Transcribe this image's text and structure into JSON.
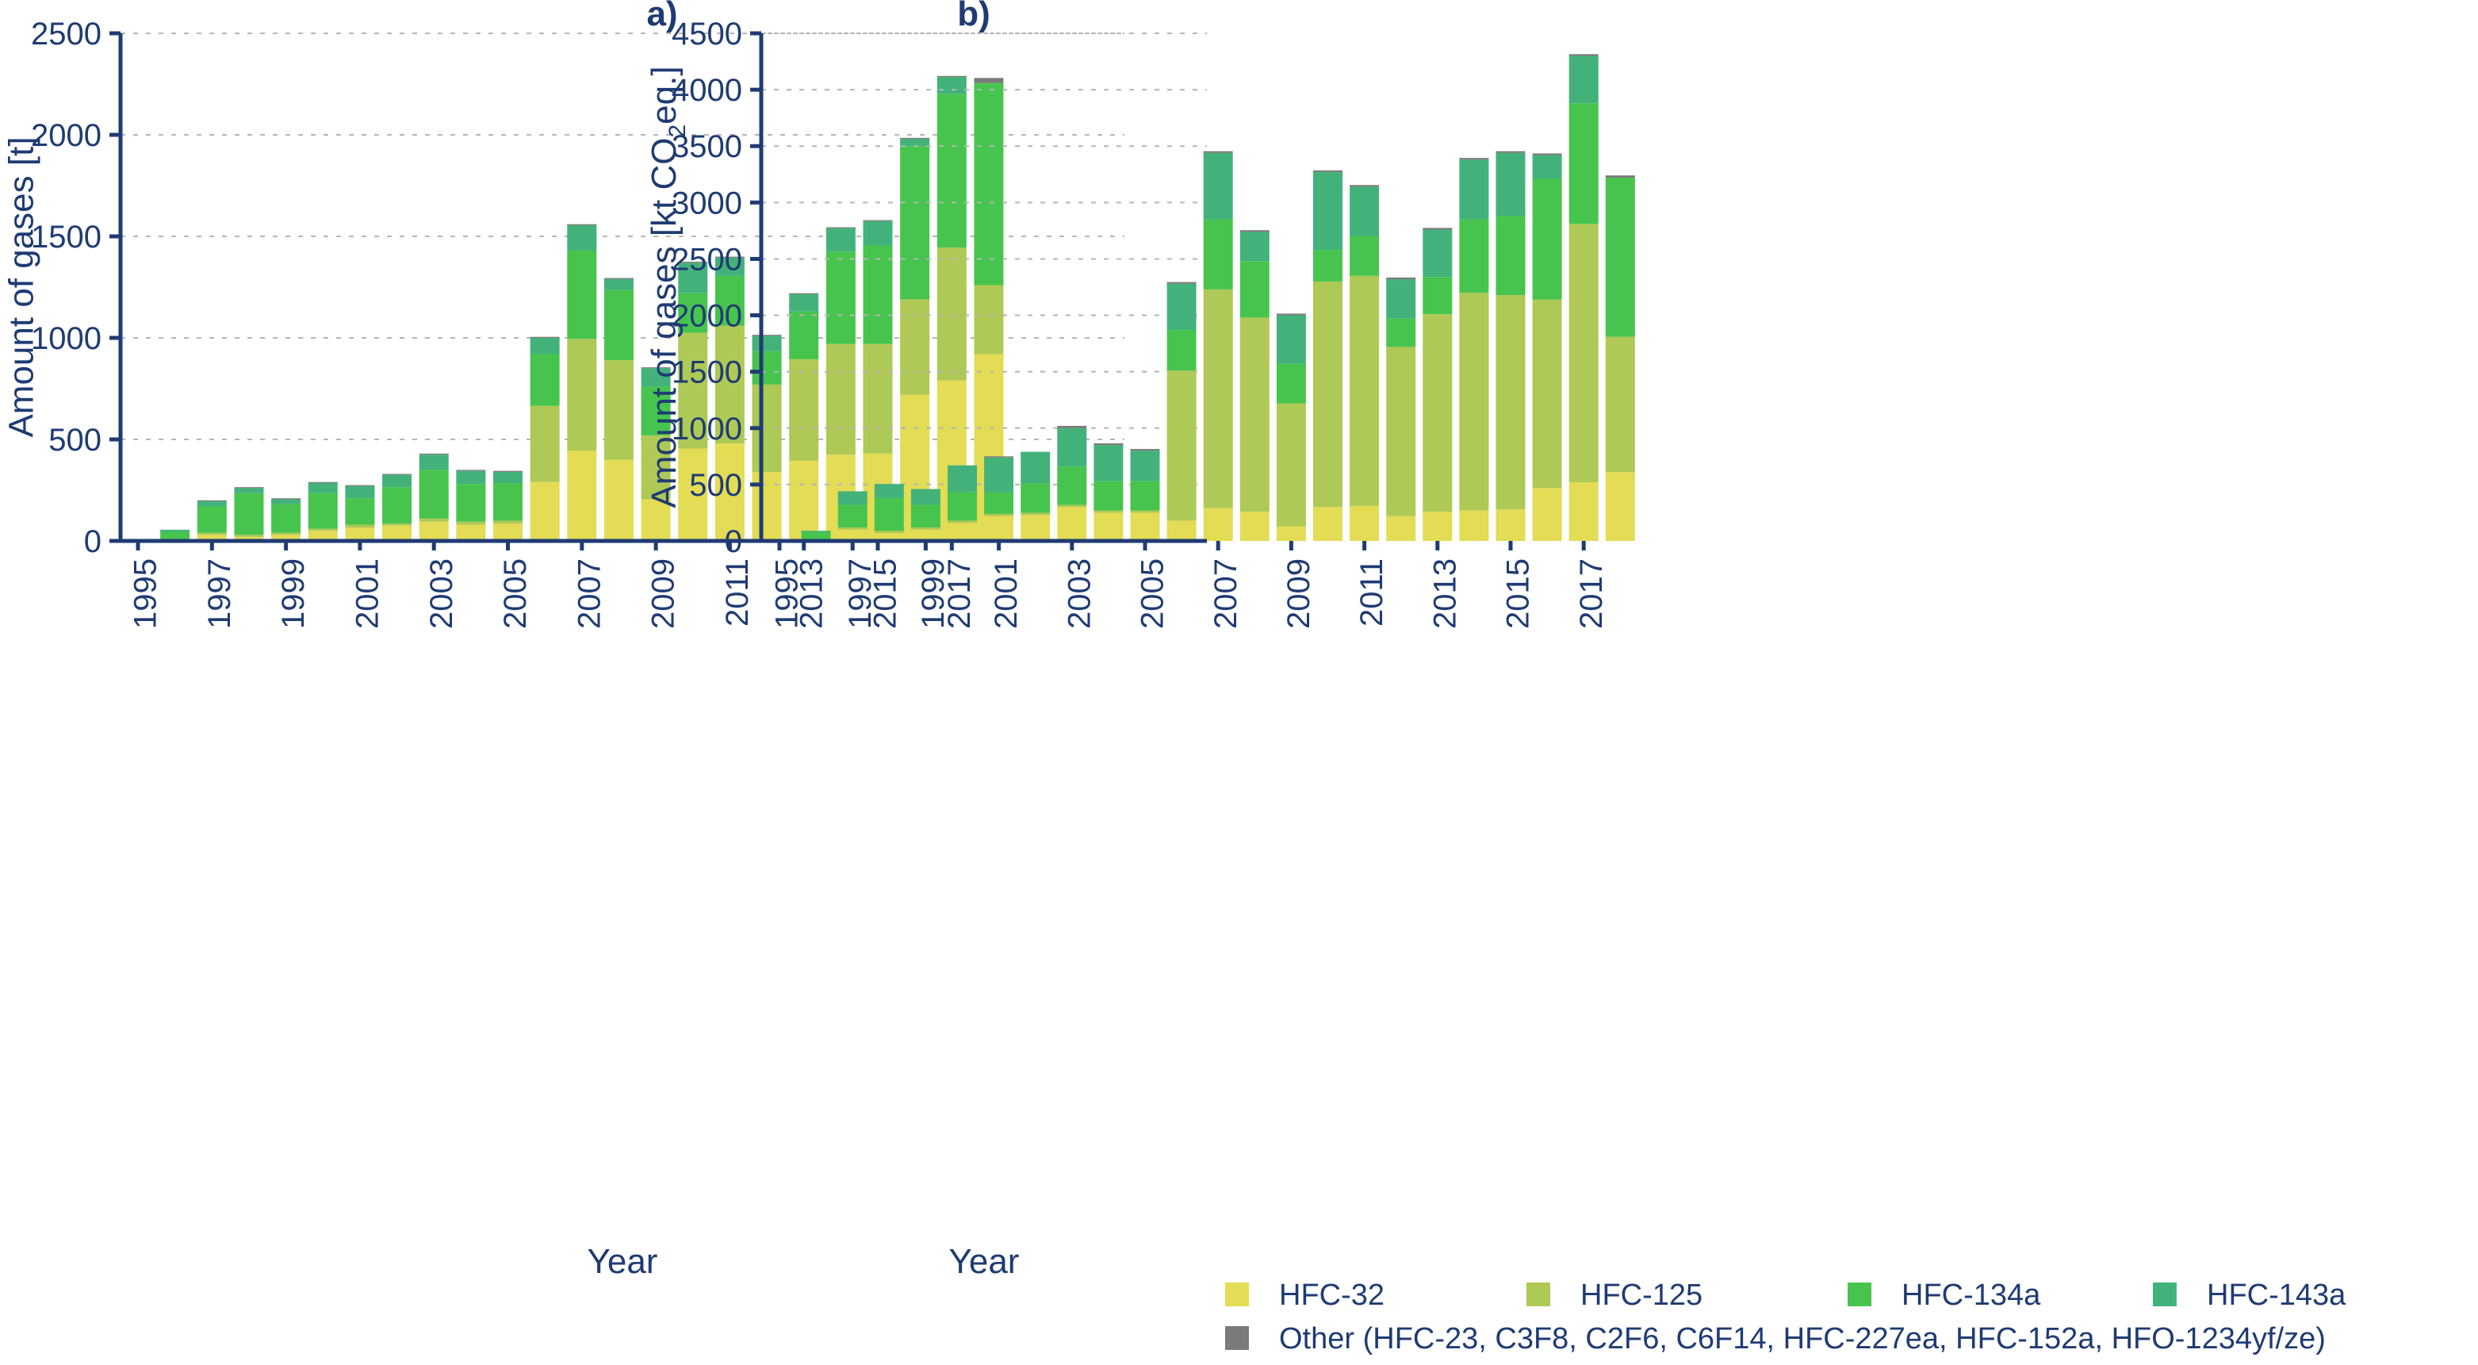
{
  "chart_data": [
    {
      "type": "bar",
      "stacked": true,
      "panel": "a",
      "title": "a)",
      "xlabel": "Year",
      "ylabel": "Amount of gases [t]",
      "ylim": [
        0,
        2500
      ],
      "yticks": [
        0,
        500,
        1000,
        1500,
        2000,
        2500
      ],
      "grid": true,
      "categories": [
        "1995",
        "1996",
        "1997",
        "1998",
        "1999",
        "2000",
        "2001",
        "2002",
        "2003",
        "2004",
        "2005",
        "2006",
        "2007",
        "2008",
        "2009",
        "2010",
        "2011",
        "2012",
        "2013",
        "2014",
        "2015",
        "2016",
        "2017",
        "2018"
      ],
      "xtick_labels": [
        "1995",
        "1997",
        "1999",
        "2001",
        "2003",
        "2005",
        "2007",
        "2009",
        "2011",
        "2013",
        "2015",
        "2017"
      ],
      "series": [
        {
          "name": "HFC-32",
          "values": [
            0,
            0,
            30,
            20,
            30,
            50,
            65,
            75,
            95,
            80,
            85,
            290,
            445,
            400,
            205,
            455,
            480,
            340,
            395,
            425,
            430,
            720,
            790,
            920
          ]
        },
        {
          "name": "HFC-125",
          "values": [
            0,
            5,
            10,
            10,
            10,
            10,
            15,
            10,
            15,
            15,
            15,
            375,
            550,
            490,
            315,
            570,
            580,
            430,
            500,
            545,
            540,
            470,
            655,
            340
          ]
        },
        {
          "name": "HFC-134a",
          "values": [
            0,
            40,
            130,
            205,
            140,
            175,
            130,
            180,
            240,
            185,
            185,
            255,
            435,
            345,
            240,
            195,
            245,
            165,
            235,
            455,
            485,
            755,
            755,
            995
          ]
        },
        {
          "name": "HFC-143a",
          "values": [
            0,
            10,
            25,
            25,
            25,
            50,
            60,
            60,
            75,
            65,
            55,
            80,
            125,
            55,
            90,
            150,
            90,
            75,
            85,
            115,
            120,
            35,
            85,
            0
          ]
        },
        {
          "name": "Other (HFC-23, C3F8, C2F6, C6F14, HFC-227ea, HFC-152a, HFO-1234yf/ze)",
          "values": [
            0,
            0,
            5,
            5,
            5,
            5,
            5,
            5,
            5,
            5,
            5,
            5,
            5,
            5,
            5,
            5,
            5,
            5,
            5,
            5,
            5,
            5,
            5,
            25
          ]
        }
      ]
    },
    {
      "type": "bar",
      "stacked": true,
      "panel": "b",
      "title": "b)",
      "xlabel": "Year",
      "ylabel": "Amount of gases [kt CO2eq.]",
      "ylabel_parts": {
        "before": "Amount of gases [kt CO",
        "sub": "2",
        "after": "eq.]"
      },
      "ylim": [
        0,
        4500
      ],
      "yticks": [
        0,
        500,
        1000,
        1500,
        2000,
        2500,
        3000,
        3500,
        4000,
        4500
      ],
      "grid": true,
      "categories": [
        "1995",
        "1996",
        "1997",
        "1998",
        "1999",
        "2000",
        "2001",
        "2002",
        "2003",
        "2004",
        "2005",
        "2006",
        "2007",
        "2008",
        "2009",
        "2010",
        "2011",
        "2012",
        "2013",
        "2014",
        "2015",
        "2016",
        "2017",
        "2018"
      ],
      "xtick_labels": [
        "1995",
        "1997",
        "1999",
        "2001",
        "2003",
        "2005",
        "2007",
        "2009",
        "2011",
        "2013",
        "2015",
        "2017"
      ],
      "series": [
        {
          "name": "HFC-32",
          "values": [
            0,
            0,
            100,
            70,
            100,
            160,
            220,
            230,
            300,
            250,
            250,
            180,
            290,
            260,
            130,
            300,
            310,
            220,
            260,
            270,
            280,
            470,
            520,
            610
          ]
        },
        {
          "name": "HFC-125",
          "values": [
            0,
            10,
            20,
            20,
            20,
            20,
            20,
            20,
            20,
            20,
            20,
            1330,
            1940,
            1720,
            1090,
            2000,
            2040,
            1500,
            1750,
            1930,
            1900,
            1670,
            2290,
            1200
          ]
        },
        {
          "name": "HFC-134a",
          "values": [
            0,
            70,
            200,
            290,
            200,
            250,
            190,
            260,
            340,
            260,
            260,
            360,
            620,
            500,
            350,
            280,
            350,
            250,
            330,
            650,
            700,
            1070,
            1070,
            1410
          ]
        },
        {
          "name": "HFC-143a",
          "values": [
            0,
            10,
            120,
            125,
            140,
            240,
            310,
            280,
            340,
            320,
            270,
            410,
            590,
            260,
            430,
            690,
            440,
            350,
            420,
            530,
            560,
            210,
            420,
            0
          ]
        },
        {
          "name": "Other (HFC-23, C3F8, C2F6, C6F14, HFC-227ea, HFC-152a, HFO-1234yf/ze)",
          "values": [
            0,
            0,
            0,
            0,
            0,
            0,
            10,
            0,
            20,
            15,
            15,
            15,
            15,
            15,
            15,
            15,
            15,
            15,
            15,
            15,
            15,
            15,
            15,
            20
          ]
        }
      ]
    }
  ],
  "colors": {
    "HFC-32": "#e3dc55",
    "HFC-125": "#aec955",
    "HFC-134a": "#47c44d",
    "HFC-143a": "#43b27a",
    "Other": "#7a7a7a",
    "axis": "#1f3b73",
    "grid": "#b5b5b5"
  },
  "legend": {
    "position": "bottom-right",
    "items": [
      {
        "label": "HFC-32",
        "color": "#e3dc55"
      },
      {
        "label": "HFC-125",
        "color": "#aec955"
      },
      {
        "label": "HFC-134a",
        "color": "#47c44d"
      },
      {
        "label": "HFC-143a",
        "color": "#43b27a"
      },
      {
        "label": "Other (HFC-23, C3F8, C2F6, C6F14, HFC-227ea, HFC-152a, HFO-1234yf/ze)",
        "color": "#7a7a7a"
      }
    ]
  }
}
